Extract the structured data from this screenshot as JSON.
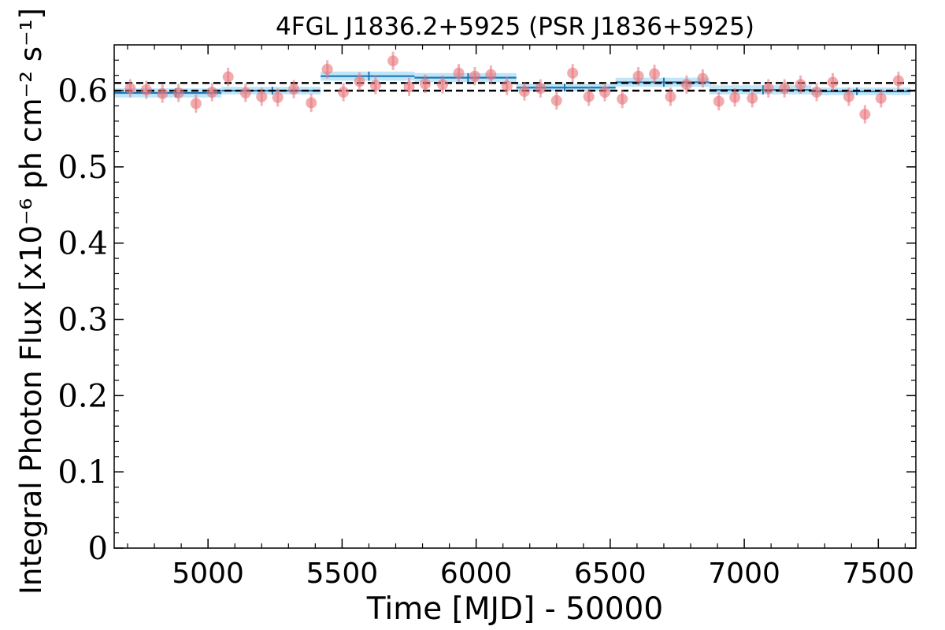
{
  "chart_data": {
    "type": "scatter",
    "title": "4FGL J1836.2+5925 (PSR J1836+5925)",
    "xlabel": "Time [MJD] - 50000",
    "ylabel": "Integral Photon Flux [x10⁻⁶ ph cm⁻² s⁻¹]",
    "xlim": [
      4650,
      7640
    ],
    "ylim": [
      0,
      0.66
    ],
    "x_ticks": [
      5000,
      5500,
      6000,
      6500,
      7000,
      7500
    ],
    "x_tick_labels": [
      "5000",
      "5500",
      "6000",
      "6500",
      "7000",
      "7500"
    ],
    "y_ticks": [
      0,
      0.1,
      0.2,
      0.3,
      0.4,
      0.5,
      0.6
    ],
    "y_tick_labels": [
      "0",
      "0.1",
      "0.2",
      "0.3",
      "0.4",
      "0.5",
      "0.6"
    ],
    "grid": false,
    "legend": "none",
    "colors": {
      "points": "#e8737a",
      "blocks": "#1f77b4",
      "block_band": "#aadcf5",
      "reference_lines": "#000000"
    },
    "series": [
      {
        "kind": "points_with_errorbars",
        "x": [
          4710,
          4770,
          4830,
          4890,
          4955,
          5015,
          5075,
          5140,
          5200,
          5260,
          5320,
          5385,
          5445,
          5505,
          5565,
          5625,
          5690,
          5750,
          5810,
          5875,
          5935,
          5995,
          6055,
          6115,
          6180,
          6240,
          6300,
          6360,
          6420,
          6480,
          6545,
          6605,
          6665,
          6725,
          6785,
          6845,
          6905,
          6965,
          7030,
          7090,
          7150,
          7210,
          7270,
          7330,
          7390,
          7450,
          7510,
          7575
        ],
        "y": [
          0.603,
          0.601,
          0.596,
          0.597,
          0.583,
          0.598,
          0.618,
          0.597,
          0.592,
          0.591,
          0.602,
          0.584,
          0.628,
          0.598,
          0.612,
          0.607,
          0.639,
          0.605,
          0.609,
          0.608,
          0.623,
          0.619,
          0.621,
          0.606,
          0.599,
          0.603,
          0.587,
          0.623,
          0.592,
          0.598,
          0.589,
          0.619,
          0.622,
          0.592,
          0.608,
          0.616,
          0.586,
          0.591,
          0.59,
          0.603,
          0.603,
          0.608,
          0.598,
          0.611,
          0.592,
          0.569,
          0.59,
          0.613
        ],
        "yerr": 0.012
      },
      {
        "kind": "bayesian_blocks",
        "blocks": [
          {
            "x_start": 4650,
            "x_end": 5050,
            "x_center": 4880,
            "y": 0.597,
            "y_lo": 0.591,
            "y_hi": 0.603
          },
          {
            "x_start": 5050,
            "x_end": 5420,
            "x_center": 5240,
            "y": 0.6,
            "y_lo": 0.595,
            "y_hi": 0.605
          },
          {
            "x_start": 5420,
            "x_end": 5770,
            "x_center": 5600,
            "y": 0.619,
            "y_lo": 0.613,
            "y_hi": 0.625
          },
          {
            "x_start": 5770,
            "x_end": 6150,
            "x_center": 5970,
            "y": 0.617,
            "y_lo": 0.611,
            "y_hi": 0.623
          },
          {
            "x_start": 6150,
            "x_end": 6520,
            "x_center": 6330,
            "y": 0.604,
            "y_lo": 0.599,
            "y_hi": 0.609
          },
          {
            "x_start": 6520,
            "x_end": 6870,
            "x_center": 6700,
            "y": 0.611,
            "y_lo": 0.605,
            "y_hi": 0.617
          },
          {
            "x_start": 6870,
            "x_end": 7250,
            "x_center": 7070,
            "y": 0.601,
            "y_lo": 0.595,
            "y_hi": 0.607
          },
          {
            "x_start": 7250,
            "x_end": 7620,
            "x_center": 7420,
            "y": 0.599,
            "y_lo": 0.594,
            "y_hi": 0.604
          }
        ]
      },
      {
        "kind": "reference_lines",
        "y": [
          0.61,
          0.6
        ],
        "style": "dashed"
      }
    ]
  }
}
